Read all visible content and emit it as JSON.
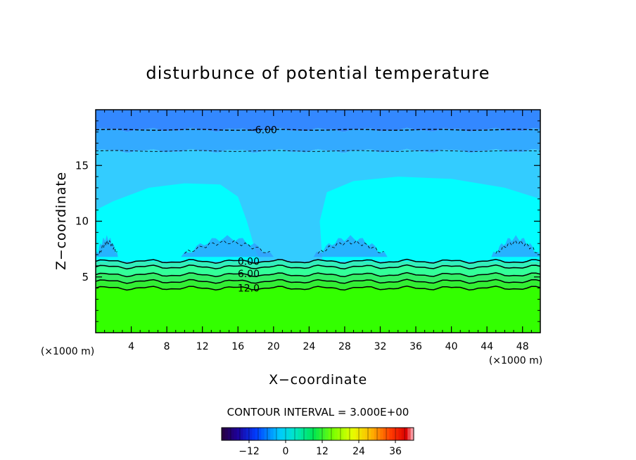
{
  "chart_data": {
    "type": "heatmap",
    "title": "disturbunce of potential temperature",
    "xlabel": "X−coordinate",
    "ylabel": "Z−coordinate",
    "x_unit_left": "(×1000 m)",
    "x_unit_right": "(×1000 m)",
    "xlim": [
      0,
      50
    ],
    "ylim": [
      0,
      20
    ],
    "x_ticks": [
      4,
      8,
      12,
      16,
      20,
      24,
      28,
      32,
      36,
      40,
      44,
      48
    ],
    "x_tick_labels": [
      "4",
      "8",
      "12",
      "16",
      "20",
      "24",
      "28",
      "32",
      "36",
      "40",
      "44",
      "48"
    ],
    "y_ticks": [
      5,
      10,
      15
    ],
    "y_tick_labels": [
      "5",
      "10",
      "15"
    ],
    "contour_interval_text": "CONTOUR INTERVAL = 3.000E+00",
    "contour_labels": [
      {
        "text": "−6.00",
        "x": 18.7,
        "z": 18.2
      },
      {
        "text": "0.00",
        "x": 17.2,
        "z": 6.4
      },
      {
        "text": "6.00",
        "x": 17.2,
        "z": 5.3
      },
      {
        "text": "12.0",
        "x": 17.2,
        "z": 4.0
      }
    ],
    "contour_lines": [
      {
        "level": -6,
        "style": "dashed",
        "z": 18.2
      },
      {
        "level": -3,
        "style": "dashed",
        "z": 16.3
      },
      {
        "level": 0,
        "style": "solid",
        "z": 6.4
      },
      {
        "level": 3,
        "style": "solid",
        "z": 5.9
      },
      {
        "level": 6,
        "style": "solid",
        "z": 5.2
      },
      {
        "level": 9,
        "style": "solid",
        "z": 4.6
      },
      {
        "level": 12,
        "style": "solid",
        "z": 4.0
      }
    ],
    "colorbar": {
      "min": -21,
      "max": 42,
      "ticks": [
        -12,
        0,
        12,
        24,
        36
      ],
      "tick_labels": [
        "−12",
        "0",
        "12",
        "24",
        "36"
      ]
    },
    "bands": [
      {
        "from_z": 0,
        "to_z": 4.0,
        "color": "#33ff00"
      },
      {
        "from_z": 4.0,
        "to_z": 4.6,
        "color": "#33ee33"
      },
      {
        "from_z": 4.6,
        "to_z": 5.2,
        "color": "#33ee66"
      },
      {
        "from_z": 5.2,
        "to_z": 5.9,
        "color": "#33ff99"
      },
      {
        "from_z": 5.9,
        "to_z": 6.4,
        "color": "#33eebb"
      },
      {
        "from_z": 6.4,
        "to_z": 16.3,
        "color": "#33ccff"
      },
      {
        "from_z": 16.3,
        "to_z": 18.2,
        "color": "#33aaff"
      },
      {
        "from_z": 18.2,
        "to_z": 20,
        "color": "#3388ff"
      }
    ],
    "colors": {
      "warm_plume": "#00ffff",
      "cold_pocket": "#3399ff"
    }
  }
}
